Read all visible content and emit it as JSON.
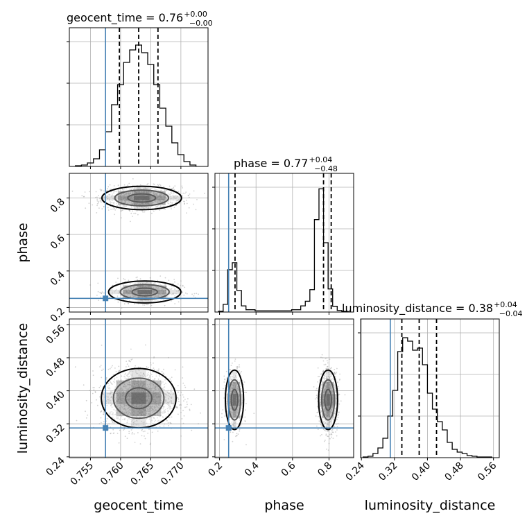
{
  "chart_data": {
    "type": "corner",
    "parameters": [
      "geocent_time",
      "phase",
      "luminosity_distance"
    ],
    "titles": {
      "geocent_time": {
        "name": "geocent_time",
        "median": "0.76",
        "plus": "+0.00",
        "minus": "−0.00"
      },
      "phase": {
        "name": "phase",
        "median": "0.77",
        "plus": "+0.04",
        "minus": "−0.48"
      },
      "luminosity_distance": {
        "name": "luminosity_distance",
        "median": "0.38",
        "plus": "+0.04",
        "minus": "−0.04"
      }
    },
    "axis_labels": {
      "geocent_time": "geocent_time",
      "phase": "phase",
      "luminosity_distance": "luminosity_distance"
    },
    "ranges": {
      "geocent_time": [
        0.7515,
        0.7745
      ],
      "phase": [
        0.175,
        0.935
      ],
      "luminosity_distance": [
        0.238,
        0.574
      ]
    },
    "ticks": {
      "geocent_time": [
        {
          "v": 0.755,
          "label": "0.755"
        },
        {
          "v": 0.76,
          "label": "0.760"
        },
        {
          "v": 0.765,
          "label": "0.765"
        },
        {
          "v": 0.77,
          "label": "0.770"
        }
      ],
      "phase": [
        {
          "v": 0.2,
          "label": "0.2"
        },
        {
          "v": 0.4,
          "label": "0.4"
        },
        {
          "v": 0.6,
          "label": "0.6"
        },
        {
          "v": 0.8,
          "label": "0.8"
        }
      ],
      "luminosity_distance": [
        {
          "v": 0.24,
          "label": "0.24"
        },
        {
          "v": 0.32,
          "label": "0.32"
        },
        {
          "v": 0.4,
          "label": "0.40"
        },
        {
          "v": 0.48,
          "label": "0.48"
        },
        {
          "v": 0.56,
          "label": "0.56"
        }
      ]
    },
    "truths": {
      "geocent_time": 0.7575,
      "phase": 0.25,
      "luminosity_distance": 0.31
    },
    "quantiles": {
      "geocent_time": [
        0.7598,
        0.763,
        0.7662
      ],
      "phase": [
        0.285,
        0.77,
        0.812
      ],
      "luminosity_distance": [
        0.338,
        0.38,
        0.422
      ]
    },
    "histograms": {
      "geocent_time": {
        "edges": [
          0.7525,
          0.7535,
          0.7545,
          0.7555,
          0.7565,
          0.7575,
          0.7585,
          0.7595,
          0.7605,
          0.7615,
          0.7625,
          0.7635,
          0.7645,
          0.7655,
          0.7665,
          0.7675,
          0.7685,
          0.7695,
          0.7705,
          0.7715,
          0.7725
        ],
        "counts": [
          1,
          2,
          5,
          11,
          24,
          50,
          89,
          118,
          150,
          168,
          175,
          164,
          147,
          118,
          84,
          58,
          34,
          17,
          7,
          2
        ],
        "ymax": 200
      },
      "phase": {
        "edges": [
          0.195,
          0.22,
          0.245,
          0.27,
          0.295,
          0.32,
          0.345,
          0.37,
          0.395,
          0.42,
          0.445,
          0.47,
          0.495,
          0.52,
          0.545,
          0.57,
          0.595,
          0.62,
          0.645,
          0.67,
          0.695,
          0.72,
          0.745,
          0.77,
          0.795,
          0.82,
          0.845,
          0.87,
          0.895
        ],
        "counts": [
          2,
          20,
          110,
          128,
          56,
          16,
          6,
          6,
          3,
          3,
          3,
          3,
          3,
          3,
          3,
          3,
          6,
          6,
          16,
          28,
          58,
          240,
          320,
          180,
          60,
          15,
          4,
          2
        ],
        "ymax": 360
      },
      "luminosity_distance": {
        "edges": [
          0.244,
          0.256,
          0.268,
          0.28,
          0.292,
          0.304,
          0.316,
          0.328,
          0.34,
          0.352,
          0.364,
          0.376,
          0.388,
          0.4,
          0.412,
          0.424,
          0.436,
          0.448,
          0.46,
          0.472,
          0.484,
          0.496,
          0.508,
          0.52,
          0.532,
          0.544,
          0.556
        ],
        "counts": [
          1,
          2,
          6,
          14,
          28,
          60,
          97,
          153,
          173,
          168,
          155,
          158,
          134,
          93,
          70,
          52,
          40,
          22,
          12,
          8,
          6,
          3,
          2,
          1,
          1,
          1
        ],
        "ymax": 200
      }
    },
    "point_clouds": [
      {
        "x": "geocent_time",
        "y": "phase",
        "clusters": [
          {
            "mx": 0.7635,
            "sx": 0.0033,
            "my": 0.8,
            "sy": 0.032,
            "n": 1100
          },
          {
            "mx": 0.764,
            "sx": 0.003,
            "my": 0.285,
            "sy": 0.03,
            "n": 520
          }
        ]
      },
      {
        "x": "geocent_time",
        "y": "luminosity_distance",
        "clusters": [
          {
            "mx": 0.763,
            "sx": 0.0031,
            "my": 0.382,
            "sy": 0.036,
            "n": 1600
          }
        ]
      },
      {
        "x": "phase",
        "y": "luminosity_distance",
        "clusters": [
          {
            "mx": 0.282,
            "sx": 0.025,
            "my": 0.378,
            "sy": 0.036,
            "n": 460
          },
          {
            "mx": 0.795,
            "sx": 0.026,
            "my": 0.378,
            "sy": 0.036,
            "n": 1100
          }
        ]
      }
    ],
    "colors": {
      "truth": "#4682b4",
      "hist": "#000000",
      "points": "#9a9a9a",
      "grid": "#b0b0b0",
      "density": "#000000"
    },
    "grid": true
  }
}
